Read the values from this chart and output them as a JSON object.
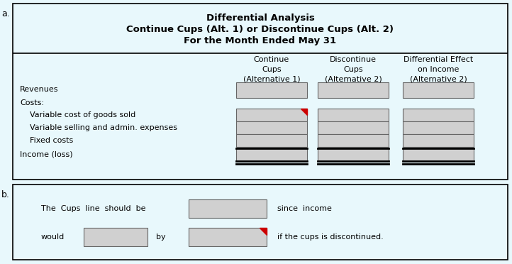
{
  "bg_color": "#e8f8fc",
  "border_color": "#000000",
  "box_fill": "#d0d0d0",
  "red_corner_color": "#cc0000",
  "title_line1": "Differential Analysis",
  "title_line2": "Continue Cups (Alt. 1) or Discontinue Cups (Alt. 2)",
  "title_line3": "For the Month Ended May 31",
  "col_headers": [
    [
      "Continue",
      "Cups",
      "(Alternative 1)"
    ],
    [
      "Discontinue",
      "Cups",
      "(Alternative 2)"
    ],
    [
      "Differential Effect",
      "on Income",
      "(Alternative 2)"
    ]
  ],
  "label_a": "a.",
  "label_b": "b.",
  "text_b_line1_pre": "The  Cups  line  should  be",
  "text_b_line1_post": "since  income",
  "text_b_line2_pre": "would",
  "text_b_line2_mid": "by",
  "text_b_line2_post": "if the cups is discontinued.",
  "font_color": "#000000",
  "title_font_size": 9.5,
  "header_font_size": 8,
  "body_font_size": 8,
  "label_font_size": 9
}
